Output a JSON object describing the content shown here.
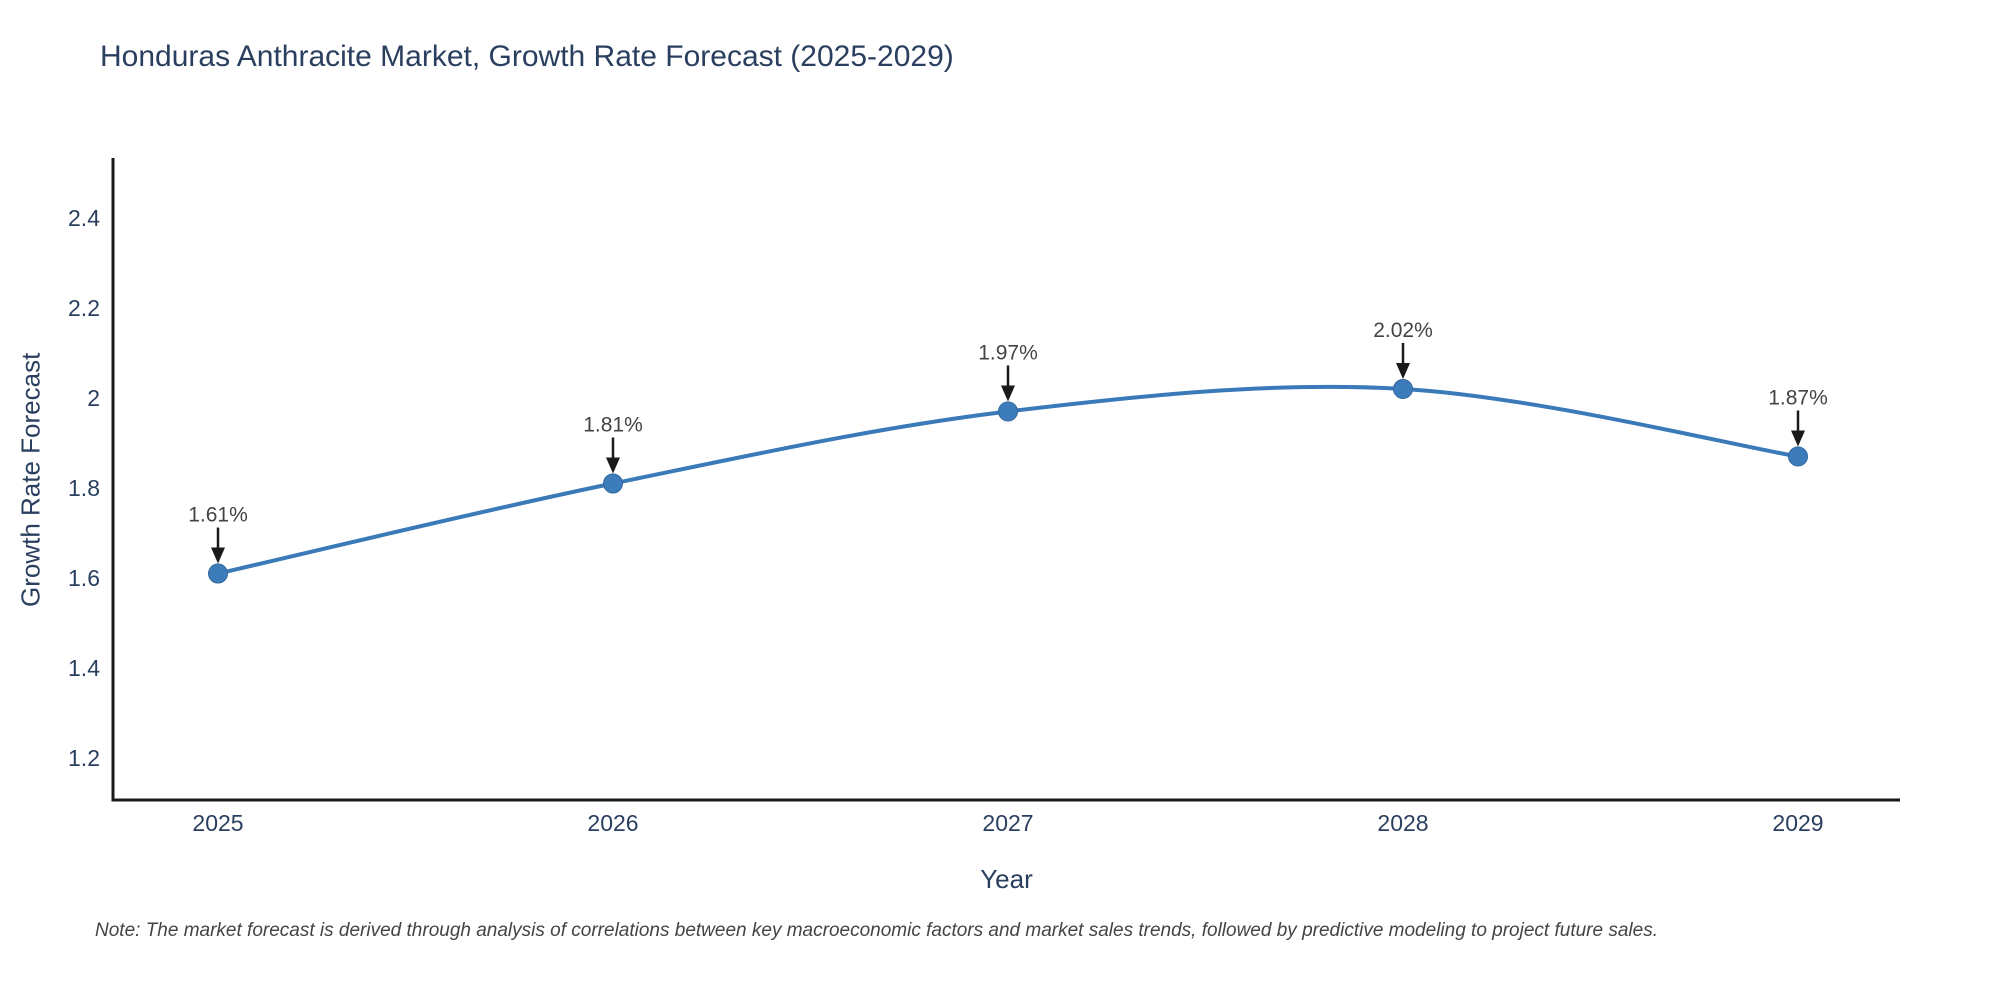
{
  "title": "Honduras Anthracite Market, Growth Rate Forecast (2025-2029)",
  "note": "Note: The market forecast is derived through analysis of correlations between key macroeconomic factors and market sales trends, followed by predictive modeling to project future sales.",
  "chart_data": {
    "type": "line",
    "title": "Honduras Anthracite Market, Growth Rate Forecast (2025-2029)",
    "xlabel": "Year",
    "ylabel": "Growth Rate Forecast",
    "x": [
      2025,
      2026,
      2027,
      2028,
      2029
    ],
    "y": [
      1.61,
      1.81,
      1.97,
      2.02,
      1.87
    ],
    "point_labels": [
      "1.61%",
      "1.81%",
      "1.97%",
      "2.02%",
      "1.87%"
    ],
    "xtick_labels": [
      "2025",
      "2026",
      "2027",
      "2028",
      "2029"
    ],
    "ytick_values": [
      1.2,
      1.4,
      1.6,
      1.8,
      2.0,
      2.2,
      2.4
    ],
    "ytick_labels": [
      "1.2",
      "1.4",
      "1.6",
      "1.8",
      "2",
      "2.2",
      "2.4"
    ],
    "ylim": [
      1.107,
      2.533
    ],
    "line_shape": "spline",
    "grid": false,
    "legend": "none",
    "colors": {
      "line": "#3a7ab9",
      "marker_fill": "#3d7cba",
      "marker_edge": "#32689e",
      "axis": "#1a1a1a",
      "axis_text": "#2a3f5f",
      "annotation_text": "#444444",
      "arrow": "#1a1a1a",
      "background": "#ffffff"
    }
  }
}
